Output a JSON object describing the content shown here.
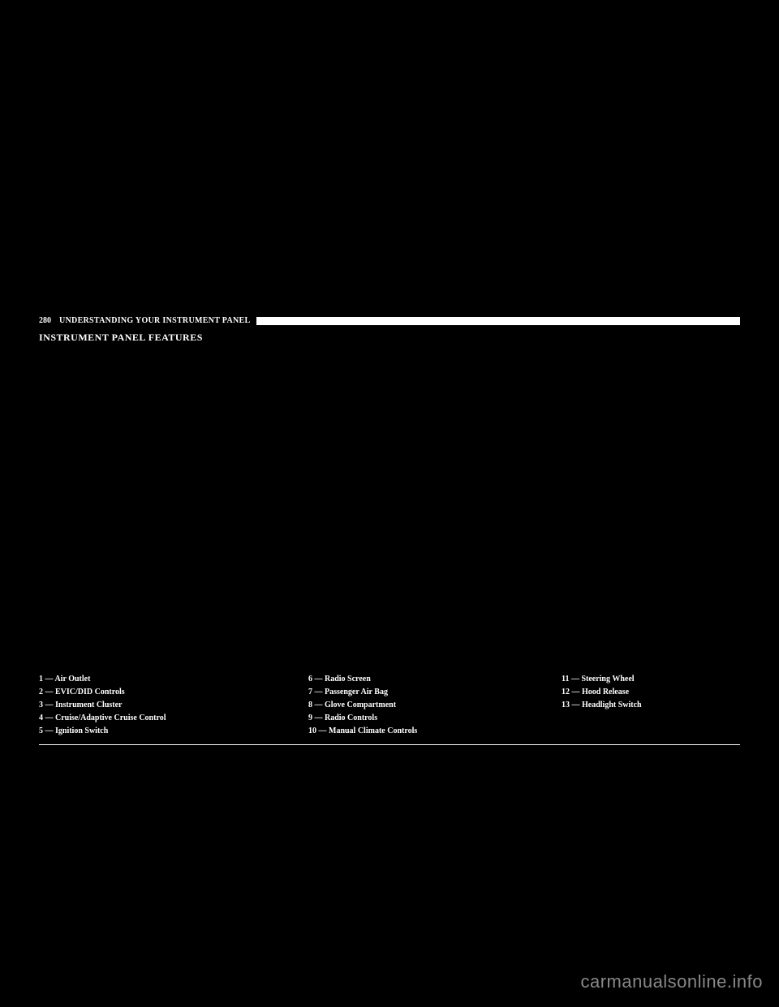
{
  "header": {
    "page_number": "280",
    "section_header": "UNDERSTANDING YOUR INSTRUMENT PANEL"
  },
  "title": "INSTRUMENT PANEL FEATURES",
  "legend": {
    "col1": [
      "1 — Air Outlet",
      "2 — EVIC/DID Controls",
      "3 — Instrument Cluster",
      "4 — Cruise/Adaptive Cruise Control",
      "5 — Ignition Switch"
    ],
    "col2": [
      "6 — Radio Screen",
      "7 — Passenger Air Bag",
      "8 — Glove Compartment",
      "9 — Radio Controls",
      "10 — Manual Climate Controls"
    ],
    "col3": [
      "11 — Steering Wheel",
      "12 — Hood Release",
      "13 — Headlight Switch"
    ]
  },
  "watermark": "carmanualsonline.info",
  "colors": {
    "background": "#000000",
    "text": "#ffffff",
    "watermark": "#888888"
  }
}
